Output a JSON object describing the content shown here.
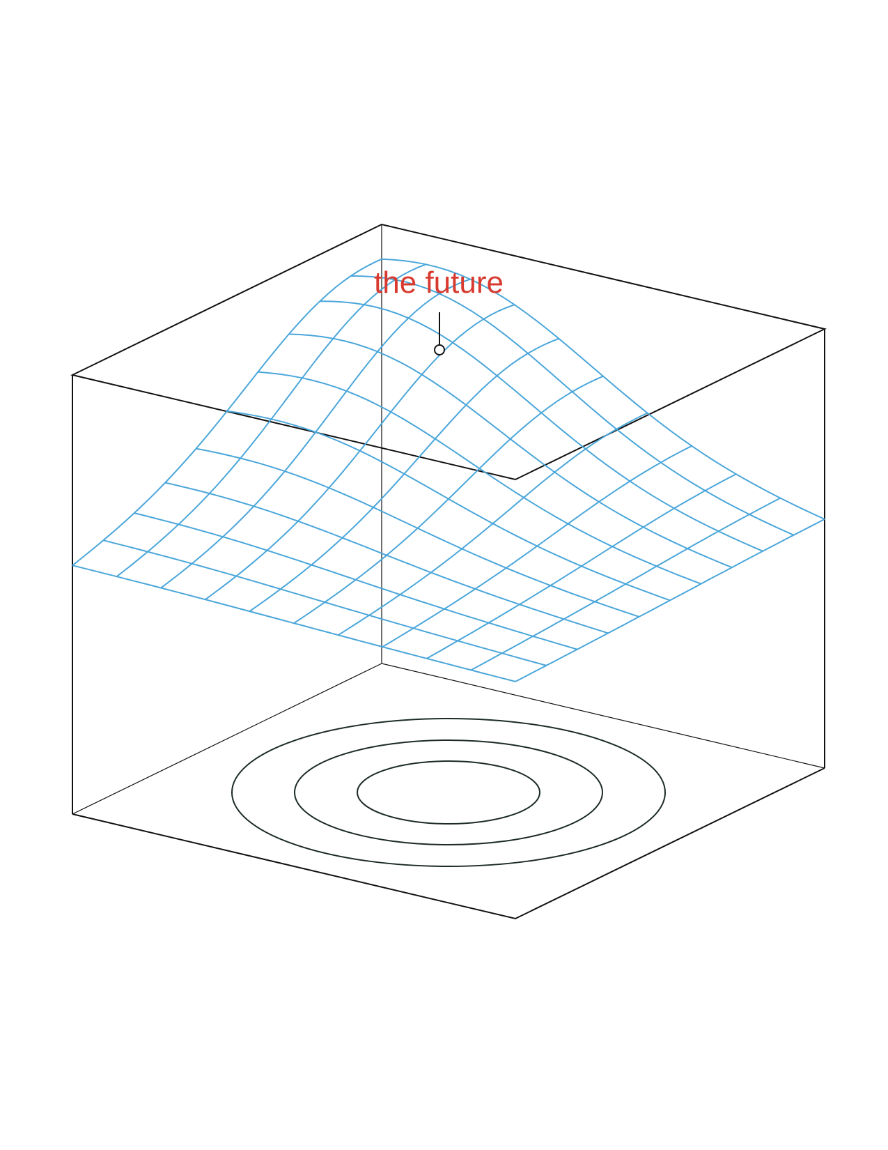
{
  "annotation": {
    "label": "the future"
  },
  "colors": {
    "background": "#ffffff",
    "box_edges": "#111111",
    "surface_mesh": "#4aa6da",
    "contours": "#1c2b26",
    "annotation_text": "#d83a30",
    "marker": "#111111"
  },
  "diagram": {
    "kind": "3d-surface-with-contour-projection",
    "surface_shape": "single-peak",
    "mesh_lines_per_direction": 11,
    "contour_rings": 3,
    "peak_marker": "open-circle"
  }
}
